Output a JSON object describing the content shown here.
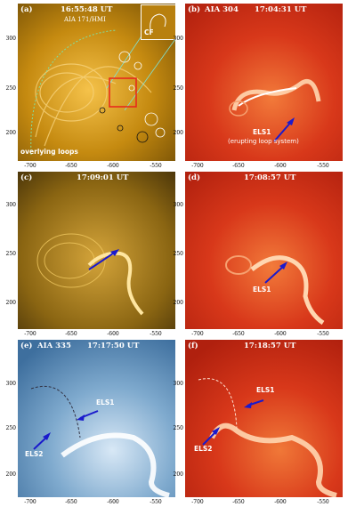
{
  "panels": [
    {
      "id": "a",
      "letter": "(a)",
      "time": "16:55:48 UT",
      "subtitle": "AIA 171/HMI",
      "inset_label": "CF",
      "bottom_label": "overlying loops",
      "theme": "gold"
    },
    {
      "id": "b",
      "letter": "(b)",
      "instrument": "AIA 304",
      "time": "17:04:31 UT",
      "annot_main": "ELS1",
      "annot_sub": "(erupting loop system)",
      "theme": "red"
    },
    {
      "id": "c",
      "letter": "(c)",
      "time": "17:09:01 UT",
      "theme": "gold"
    },
    {
      "id": "d",
      "letter": "(d)",
      "time": "17:08:57 UT",
      "annot_main": "ELS1",
      "theme": "red"
    },
    {
      "id": "e",
      "letter": "(e)",
      "instrument": "AIA 335",
      "time": "17:17:50 UT",
      "annot_1": "ELS1",
      "annot_2": "ELS2",
      "theme": "blue"
    },
    {
      "id": "f",
      "letter": "(f)",
      "time": "17:18:57 UT",
      "annot_1": "ELS1",
      "annot_2": "ELS2",
      "theme": "red"
    }
  ],
  "axes": {
    "row_yticks": [
      [
        "300",
        "250",
        "200"
      ],
      [
        "300",
        "250",
        "200"
      ],
      [
        "300",
        "250",
        "200"
      ]
    ],
    "xticks": [
      "-700",
      "-650",
      "-600",
      "-550"
    ]
  },
  "colors": {
    "arrow": "#1a1acc",
    "red_box": "#e8231c",
    "gold": "#c58a10",
    "red": "#d8381a",
    "blue": "#6e9ec4"
  }
}
